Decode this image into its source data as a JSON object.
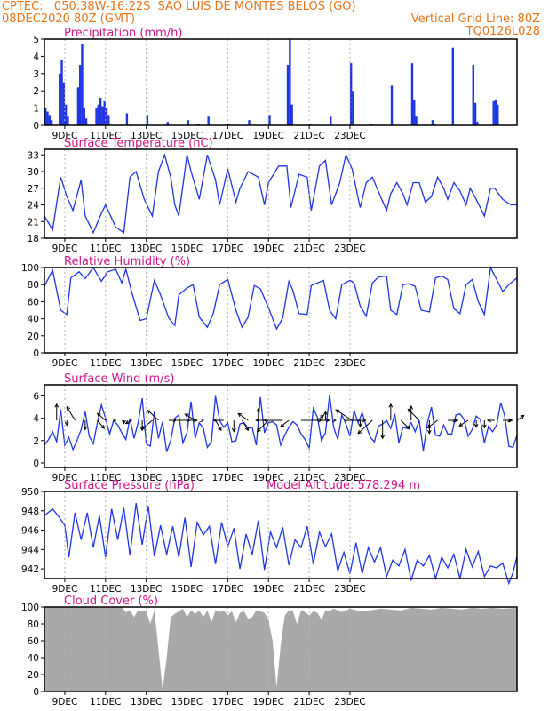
{
  "header": {
    "line1": "CPTEC:   050:38W-16:22S  SAO LUIS DE MONTES BELOS (GO)",
    "line2_left": "08DEC2020 80Z (GMT)",
    "line2_right": "Vertical Grid Line: 80Z",
    "code": "TQ0126L028"
  },
  "colors": {
    "header": "#e8741a",
    "title": "#d0148a",
    "series": "#1f35e6",
    "cloud": "#a9a9a9",
    "arrow": "#000000"
  },
  "x_ticks": [
    "9DEC",
    "11DEC",
    "13DEC",
    "15DEC",
    "17DEC",
    "19DEC",
    "21DEC",
    "23DEC"
  ],
  "chart_data": [
    {
      "type": "bar",
      "title": "Precipitation (mm/h)",
      "ylim": [
        0,
        5
      ],
      "yticks": [
        "0",
        "1",
        "2",
        "3",
        "4",
        "5"
      ],
      "x": [
        0.0,
        0.1,
        0.2,
        0.3,
        0.7,
        0.8,
        0.9,
        1.0,
        1.1,
        1.6,
        1.7,
        1.8,
        1.9,
        2.0,
        2.5,
        2.6,
        2.7,
        2.8,
        2.9,
        3.0,
        3.1,
        4.0,
        4.2,
        5.0,
        6.0,
        7.0,
        7.5,
        8.0,
        9.0,
        10.0,
        11.0,
        11.9,
        12.0,
        12.1,
        13.0,
        14.0,
        15.0,
        15.1,
        16.0,
        17.0,
        18.0,
        18.1,
        18.2,
        19.0,
        19.1,
        20.0,
        21.0,
        21.1,
        21.2,
        22.0,
        22.1,
        22.2
      ],
      "values": [
        1.0,
        0.8,
        0.6,
        0.3,
        3.0,
        3.8,
        2.5,
        1.2,
        0.5,
        2.2,
        3.5,
        4.7,
        1.0,
        0.4,
        1.0,
        1.2,
        1.6,
        1.1,
        1.4,
        1.0,
        0.6,
        0.7,
        0.1,
        0.6,
        0.2,
        0.3,
        0.1,
        0.5,
        0.1,
        0.3,
        0.6,
        3.5,
        5.0,
        1.2,
        0.1,
        0.5,
        3.6,
        2.0,
        0.1,
        2.3,
        3.6,
        1.5,
        0.5,
        0.3,
        0.1,
        4.5,
        3.5,
        1.3,
        0.2,
        1.4,
        1.5,
        1.2
      ]
    },
    {
      "type": "line",
      "title": "Surface Temperature (nC)",
      "ylim": [
        18,
        34
      ],
      "yticks": [
        "18",
        "21",
        "24",
        "27",
        "30",
        "33"
      ],
      "x": [
        0.0,
        0.4,
        0.8,
        1.1,
        1.4,
        1.8,
        2.0,
        2.4,
        2.8,
        3.0,
        3.5,
        3.9,
        4.2,
        4.5,
        4.9,
        5.3,
        5.6,
        5.9,
        6.2,
        6.4,
        6.6,
        7.0,
        7.2,
        7.6,
        8.0,
        8.4,
        8.6,
        9.0,
        9.4,
        9.6,
        10.0,
        10.5,
        10.8,
        11.0,
        11.5,
        11.9,
        12.1,
        12.5,
        12.9,
        13.1,
        13.5,
        13.8,
        14.1,
        14.5,
        14.8,
        15.1,
        15.5,
        15.8,
        16.1,
        16.5,
        16.8,
        17.0,
        17.3,
        17.6,
        17.8,
        18.1,
        18.4,
        18.7,
        19.0,
        19.3,
        19.6,
        19.8,
        20.1,
        20.4,
        20.7,
        20.9,
        21.2,
        21.6,
        21.9,
        22.1,
        22.5,
        22.9,
        23.2
      ],
      "values": [
        22,
        19.5,
        29,
        25.5,
        23,
        28.5,
        22,
        19,
        22.5,
        24,
        20,
        19,
        29,
        30,
        25,
        22,
        30,
        33,
        29,
        24,
        22,
        33,
        30,
        25,
        33,
        28.5,
        24,
        30.5,
        24.5,
        27,
        30,
        29,
        24,
        28,
        31,
        31,
        23.5,
        29.5,
        29,
        23,
        31,
        32,
        24,
        28,
        33,
        30.5,
        23.5,
        28,
        29,
        25.5,
        23,
        26,
        28,
        26,
        24,
        28,
        28,
        24.5,
        25.5,
        29,
        27,
        25,
        28,
        26.5,
        24,
        27,
        25,
        22,
        27,
        27,
        25,
        24,
        24
      ]
    },
    {
      "type": "line",
      "title": "Relative Humidity (%)",
      "ylim": [
        0,
        100
      ],
      "yticks": [
        "0",
        "20",
        "40",
        "60",
        "80",
        "100"
      ],
      "x": [
        0.0,
        0.4,
        0.8,
        1.1,
        1.3,
        1.7,
        2.0,
        2.4,
        2.8,
        3.1,
        3.5,
        3.8,
        4.0,
        4.3,
        4.7,
        5.0,
        5.4,
        5.7,
        6.1,
        6.4,
        6.6,
        7.0,
        7.3,
        7.6,
        8.0,
        8.3,
        8.6,
        9.0,
        9.4,
        9.7,
        10.0,
        10.3,
        10.6,
        11.0,
        11.4,
        11.7,
        12.0,
        12.2,
        12.5,
        12.9,
        13.1,
        13.4,
        13.7,
        14.0,
        14.3,
        14.6,
        15.0,
        15.2,
        15.5,
        15.8,
        16.1,
        16.4,
        16.8,
        17.0,
        17.3,
        17.6,
        17.9,
        18.2,
        18.5,
        18.9,
        19.2,
        19.5,
        19.8,
        20.1,
        20.4,
        20.7,
        21.0,
        21.3,
        21.6,
        21.9,
        22.2,
        22.5,
        22.8,
        23.2
      ],
      "values": [
        78,
        97,
        50,
        45,
        88,
        95,
        87,
        100,
        84,
        95,
        98,
        82,
        98,
        70,
        38,
        40,
        85,
        68,
        41,
        32,
        68,
        76,
        80,
        42,
        30,
        47,
        80,
        86,
        50,
        30,
        42,
        79,
        75,
        53,
        28,
        41,
        84,
        73,
        46,
        45,
        79,
        82,
        85,
        50,
        40,
        80,
        85,
        82,
        55,
        43,
        82,
        89,
        90,
        50,
        45,
        80,
        81,
        78,
        50,
        48,
        88,
        90,
        86,
        52,
        46,
        80,
        86,
        60,
        45,
        100,
        86,
        72,
        80,
        88
      ]
    },
    {
      "type": "line",
      "title": "Surface Wind (m/s)",
      "ylim": [
        -0.4,
        7.0
      ],
      "yticks": [
        "0",
        "2",
        "4",
        "6"
      ],
      "x": [
        0.0,
        0.2,
        0.4,
        0.6,
        0.8,
        1.0,
        1.2,
        1.4,
        1.6,
        1.8,
        2.0,
        2.2,
        2.4,
        2.6,
        2.8,
        3.0,
        3.2,
        3.4,
        3.6,
        3.8,
        4.0,
        4.2,
        4.4,
        4.6,
        4.8,
        5.0,
        5.2,
        5.4,
        5.6,
        5.8,
        6.0,
        6.2,
        6.4,
        6.6,
        6.8,
        7.0,
        7.2,
        7.4,
        7.6,
        7.8,
        8.0,
        8.2,
        8.4,
        8.6,
        8.8,
        9.0,
        9.2,
        9.4,
        9.6,
        9.8,
        10.0,
        10.2,
        10.4,
        10.6,
        10.8,
        11.0,
        11.2,
        11.4,
        11.6,
        11.8,
        12.0,
        12.2,
        12.4,
        12.6,
        12.8,
        13.0,
        13.2,
        13.4,
        13.6,
        13.8,
        14.0,
        14.2,
        14.4,
        14.6,
        14.8,
        15.0,
        15.2,
        15.4,
        15.6,
        15.8,
        16.0,
        16.2,
        16.4,
        16.6,
        16.8,
        17.0,
        17.2,
        17.4,
        17.6,
        17.8,
        18.0,
        18.2,
        18.4,
        18.6,
        18.8,
        19.0,
        19.2,
        19.4,
        19.6,
        19.8,
        20.0,
        20.2,
        20.4,
        20.6,
        20.8,
        21.0,
        21.2,
        21.4,
        21.6,
        21.8,
        22.0,
        22.2,
        22.4,
        22.6,
        22.8,
        23.0,
        23.2
      ],
      "values": [
        1.6,
        2.1,
        2.8,
        1.9,
        4.8,
        1.6,
        2.3,
        1.2,
        2.0,
        3.0,
        4.6,
        2.4,
        1.7,
        3.6,
        5.2,
        4.0,
        2.6,
        3.8,
        3.4,
        2.7,
        2.1,
        4.0,
        2.2,
        3.6,
        5.8,
        1.7,
        1.5,
        4.6,
        2.2,
        3.7,
        1.0,
        2.0,
        4.0,
        4.3,
        1.8,
        2.7,
        5.5,
        2.2,
        3.6,
        3.1,
        1.4,
        1.9,
        6.0,
        3.8,
        3.2,
        3.6,
        1.9,
        2.0,
        3.5,
        3.6,
        3.1,
        3.2,
        1.6,
        5.9,
        2.7,
        3.6,
        3.7,
        3.4,
        1.6,
        2.5,
        3.2,
        3.7,
        3.4,
        2.6,
        2.1,
        1.3,
        4.9,
        4.1,
        2.0,
        2.7,
        6.1,
        3.2,
        2.1,
        4.3,
        3.5,
        2.4,
        4.7,
        3.6,
        4.5,
        3.3,
        2.3,
        1.9,
        3.3,
        3.5,
        3.8,
        3.1,
        4.4,
        1.8,
        3.2,
        3.1,
        3.6,
        2.8,
        3.8,
        1.1,
        3.6,
        5.0,
        2.5,
        2.4,
        3.4,
        2.6,
        2.6,
        4.3,
        4.4,
        3.9,
        2.4,
        3.0,
        4.2,
        3.9,
        1.8,
        3.3,
        2.8,
        3.4,
        5.4,
        4.2,
        1.5,
        1.4,
        2.5
      ],
      "arrows_x": [
        0.6,
        1.1,
        1.5,
        2.0,
        2.6,
        3.0,
        3.5,
        3.9,
        4.3,
        4.8,
        5.3,
        5.6,
        6.1,
        6.5,
        7.0,
        7.4,
        7.8,
        8.4,
        8.8,
        9.3,
        9.7,
        10.0,
        10.5,
        11.0,
        11.4,
        11.7,
        12.0,
        12.6,
        13.0,
        13.4,
        13.8,
        14.3,
        14.7,
        15.1,
        15.5,
        16.1,
        16.6,
        17.0,
        17.5,
        18.0,
        18.4,
        18.9,
        19.3,
        19.8,
        20.2,
        20.8,
        21.2,
        21.6,
        22.1,
        22.5,
        22.9,
        23.2
      ],
      "arrows_u": [
        0.0,
        0.0,
        -1.3,
        0.0,
        1.1,
        -1.3,
        0.0,
        0.0,
        -1.0,
        0.0,
        -1.7,
        -1.7,
        1.2,
        2.1,
        1.6,
        -1.6,
        0.0,
        0.9,
        -1.6,
        0.0,
        1.0,
        -1.6,
        0.0,
        -1.8,
        -3.3,
        -3.0,
        -1.3,
        3.3,
        3.2,
        1.0,
        0.0,
        0.0,
        3.5,
        -2.6,
        0.0,
        -2.3,
        0.0,
        0.0,
        1.4,
        0.0,
        -1.8,
        0.0,
        -1.6,
        1.6,
        0.0,
        -1.4,
        0.0,
        0.0,
        -1.1,
        1.5,
        0.0,
        1.1
      ],
      "arrows_v": [
        2.6,
        -0.8,
        2.2,
        -1.5,
        -1.3,
        1.1,
        0.0,
        -0.5,
        -0.5,
        -1.6,
        -1.4,
        1.6,
        0.0,
        0.0,
        0.0,
        1.0,
        0.0,
        -1.6,
        0.0,
        -1.8,
        -1.6,
        1.1,
        1.9,
        -1.8,
        0.0,
        0.0,
        -1.0,
        0.0,
        0.0,
        0.8,
        1.4,
        0.0,
        0.0,
        1.7,
        -1.0,
        -2.1,
        -2.9,
        2.6,
        -1.4,
        2.3,
        1.8,
        -2.1,
        -1.2,
        0.0,
        0.0,
        -0.9,
        -1.1,
        -1.2,
        0.0,
        0.0,
        0.0,
        0.8
      ]
    },
    {
      "type": "line",
      "title": "Surface Pressure (hPa)",
      "ylim": [
        941,
        950
      ],
      "yticks": [
        "942",
        "944",
        "946",
        "948",
        "950"
      ],
      "x": [
        0.0,
        0.4,
        0.7,
        1.0,
        1.2,
        1.5,
        1.8,
        2.1,
        2.4,
        2.7,
        3.0,
        3.3,
        3.6,
        3.9,
        4.2,
        4.5,
        4.8,
        5.1,
        5.4,
        5.7,
        6.0,
        6.3,
        6.6,
        6.9,
        7.2,
        7.5,
        7.8,
        8.1,
        8.4,
        8.7,
        9.0,
        9.3,
        9.6,
        9.9,
        10.2,
        10.5,
        10.8,
        11.1,
        11.4,
        11.7,
        12.0,
        12.3,
        12.6,
        12.9,
        13.2,
        13.5,
        13.8,
        14.1,
        14.4,
        14.7,
        15.0,
        15.3,
        15.6,
        15.9,
        16.2,
        16.5,
        16.8,
        17.1,
        17.4,
        17.7,
        18.0,
        18.3,
        18.6,
        18.9,
        19.2,
        19.5,
        19.8,
        20.1,
        20.4,
        20.7,
        21.0,
        21.3,
        21.6,
        21.9,
        22.2,
        22.5,
        22.8,
        23.0,
        23.2
      ],
      "values": [
        947.5,
        948.2,
        947.4,
        946.5,
        943.2,
        947.8,
        945.0,
        947.8,
        944.2,
        947.5,
        943.2,
        948.2,
        945.0,
        948.3,
        943.4,
        948.8,
        944.5,
        948.5,
        943.3,
        946.5,
        943.5,
        946.4,
        943.2,
        947.3,
        942.2,
        946.8,
        945.5,
        946.4,
        942.5,
        946.8,
        944.3,
        946.2,
        942.0,
        945.6,
        943.5,
        947.0,
        941.9,
        945.8,
        944.2,
        946.3,
        942.4,
        945.0,
        944.2,
        946.4,
        942.5,
        945.8,
        944.3,
        945.6,
        941.8,
        943.7,
        941.5,
        944.7,
        941.5,
        944.2,
        942.7,
        944.2,
        941.2,
        942.9,
        942.3,
        944.0,
        940.8,
        942.9,
        942.3,
        943.4,
        941.0,
        943.2,
        942.1,
        943.5,
        941.0,
        944.0,
        942.2,
        943.8,
        941.2,
        942.3,
        942.1,
        942.6,
        940.5,
        941.6,
        943.3
      ]
    },
    {
      "type": "area",
      "title": "Cloud Cover (%)",
      "ylim": [
        0,
        100
      ],
      "yticks": [
        "0",
        "20",
        "40",
        "60",
        "80",
        "100"
      ],
      "x": [
        0.0,
        3.8,
        4.0,
        4.2,
        4.4,
        4.6,
        4.8,
        5.0,
        5.2,
        5.4,
        5.6,
        5.8,
        6.0,
        6.2,
        6.4,
        6.6,
        6.8,
        7.0,
        7.2,
        7.4,
        7.6,
        7.8,
        8.0,
        8.2,
        8.4,
        8.6,
        8.8,
        9.0,
        9.2,
        9.4,
        9.6,
        9.8,
        10.0,
        10.2,
        10.4,
        10.6,
        10.8,
        11.0,
        11.2,
        11.4,
        11.6,
        11.8,
        12.0,
        12.2,
        12.4,
        12.6,
        12.8,
        13.0,
        13.2,
        13.4,
        13.6,
        13.8,
        14.0,
        14.2,
        14.4,
        14.6,
        14.8,
        15.0,
        15.5,
        16.0,
        16.5,
        17.0,
        17.5,
        18.0,
        18.5,
        19.0,
        19.5,
        20.0,
        20.5,
        21.0,
        21.5,
        22.0,
        22.5,
        23.2
      ],
      "values": [
        100,
        100,
        94,
        96,
        88,
        96,
        95,
        95,
        80,
        96,
        50,
        2,
        40,
        88,
        92,
        95,
        98,
        88,
        96,
        92,
        96,
        88,
        96,
        82,
        96,
        94,
        96,
        90,
        95,
        82,
        93,
        95,
        86,
        88,
        96,
        95,
        93,
        85,
        60,
        5,
        55,
        90,
        96,
        95,
        80,
        96,
        94,
        90,
        95,
        93,
        85,
        96,
        95,
        98,
        96,
        94,
        96,
        98,
        95,
        96,
        98,
        97,
        96,
        99,
        98,
        97,
        99,
        98,
        97,
        99,
        98,
        99,
        98,
        99
      ]
    }
  ],
  "model_altitude": "Model Altitude: 578.294 m"
}
